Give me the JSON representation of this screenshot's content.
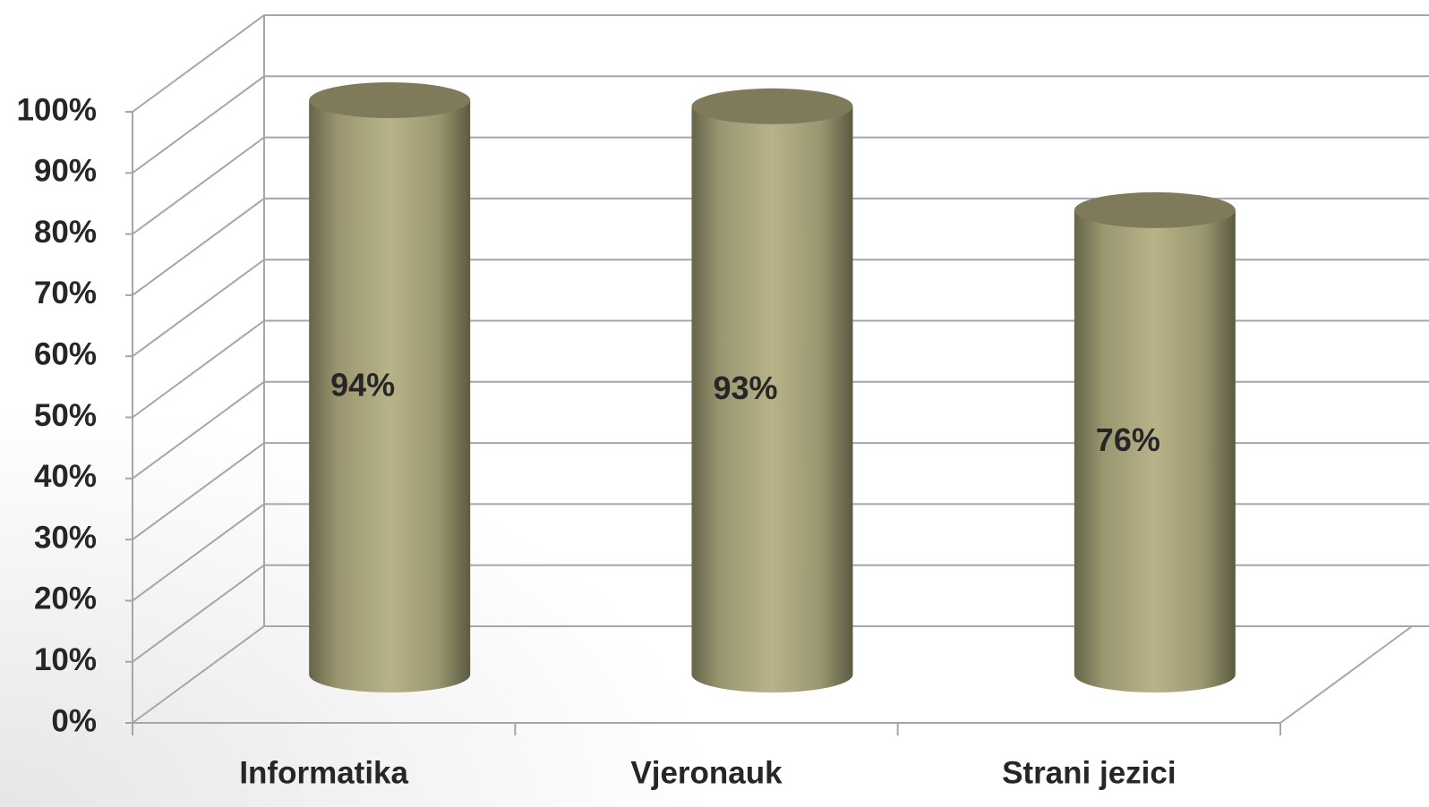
{
  "chart_data": {
    "type": "cylinder",
    "categories": [
      "Informatika",
      "Vjeronauk",
      "Strani jezici"
    ],
    "values": [
      94,
      93,
      76
    ],
    "value_labels": [
      "94%",
      "93%",
      "76%"
    ],
    "color": "#b3ae84",
    "ylim": [
      0,
      100
    ],
    "yticks": [
      {
        "value": 0,
        "label": "0%"
      },
      {
        "value": 10,
        "label": "10%"
      },
      {
        "value": 20,
        "label": "20%"
      },
      {
        "value": 30,
        "label": "30%"
      },
      {
        "value": 40,
        "label": "40%"
      },
      {
        "value": 50,
        "label": "50%"
      },
      {
        "value": 60,
        "label": "60%"
      },
      {
        "value": 70,
        "label": "70%"
      },
      {
        "value": 80,
        "label": "80%"
      },
      {
        "value": 90,
        "label": "90%"
      },
      {
        "value": 100,
        "label": "100%"
      }
    ],
    "grid": true
  }
}
